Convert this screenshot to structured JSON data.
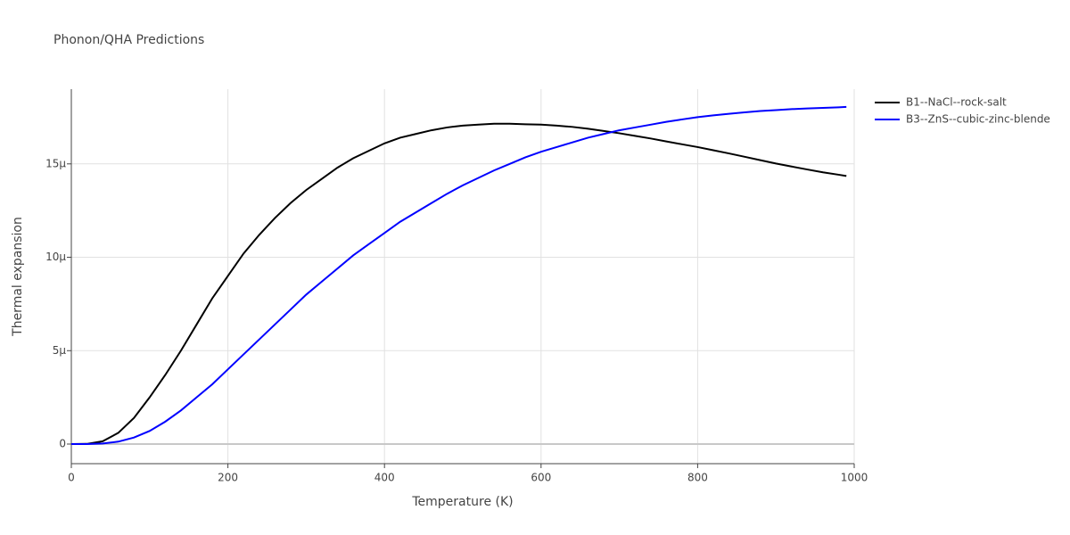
{
  "chart_data": {
    "type": "line",
    "title": "Phonon/QHA Predictions",
    "x_label": "Temperature (K)",
    "y_label": "Thermal expansion",
    "x": [
      0,
      20,
      40,
      60,
      80,
      100,
      120,
      140,
      160,
      180,
      200,
      220,
      240,
      260,
      280,
      300,
      320,
      340,
      360,
      380,
      400,
      420,
      440,
      460,
      480,
      500,
      520,
      540,
      560,
      580,
      600,
      620,
      640,
      660,
      680,
      700,
      720,
      740,
      760,
      780,
      800,
      820,
      840,
      860,
      880,
      900,
      920,
      940,
      960,
      980,
      990
    ],
    "series": [
      {
        "name": "B1--NaCl--rock-salt",
        "color": "#000000",
        "values": [
          0.0,
          1e-08,
          1.5e-07,
          6e-07,
          1.4e-06,
          2.5e-06,
          3.7e-06,
          5e-06,
          6.4e-06,
          7.8e-06,
          9e-06,
          1.02e-05,
          1.12e-05,
          1.21e-05,
          1.29e-05,
          1.36e-05,
          1.42e-05,
          1.48e-05,
          1.53e-05,
          1.57e-05,
          1.61e-05,
          1.64e-05,
          1.66e-05,
          1.68e-05,
          1.695e-05,
          1.705e-05,
          1.71e-05,
          1.715e-05,
          1.715e-05,
          1.712e-05,
          1.71e-05,
          1.705e-05,
          1.698e-05,
          1.688e-05,
          1.676e-05,
          1.664e-05,
          1.65e-05,
          1.636e-05,
          1.62e-05,
          1.605e-05,
          1.59e-05,
          1.573e-05,
          1.556e-05,
          1.538e-05,
          1.52e-05,
          1.502e-05,
          1.486e-05,
          1.47e-05,
          1.455e-05,
          1.442e-05,
          1.435e-05
        ]
      },
      {
        "name": "B3--ZnS--cubic-zinc-blende",
        "color": "#0000ff",
        "values": [
          0.0,
          0.0,
          3e-08,
          1.3e-07,
          3.5e-07,
          7e-07,
          1.2e-06,
          1.8e-06,
          2.5e-06,
          3.2e-06,
          4e-06,
          4.8e-06,
          5.6e-06,
          6.4e-06,
          7.2e-06,
          8e-06,
          8.7e-06,
          9.4e-06,
          1.01e-05,
          1.07e-05,
          1.13e-05,
          1.19e-05,
          1.24e-05,
          1.29e-05,
          1.34e-05,
          1.385e-05,
          1.425e-05,
          1.465e-05,
          1.5e-05,
          1.535e-05,
          1.565e-05,
          1.59e-05,
          1.615e-05,
          1.64e-05,
          1.66e-05,
          1.68e-05,
          1.695e-05,
          1.71e-05,
          1.725e-05,
          1.738e-05,
          1.75e-05,
          1.76e-05,
          1.768e-05,
          1.776e-05,
          1.783e-05,
          1.788e-05,
          1.793e-05,
          1.797e-05,
          1.8e-05,
          1.803e-05,
          1.805e-05
        ]
      }
    ],
    "xlim": [
      0,
      1000
    ],
    "xticks": [
      0,
      200,
      400,
      600,
      800,
      1000
    ],
    "ylim": [
      -1.05e-06,
      1.9e-05
    ],
    "yticks": [
      0,
      {
        "value": 5e-06,
        "label": "5μ"
      },
      {
        "value": 1e-05,
        "label": "10μ"
      },
      {
        "value": 1.5e-05,
        "label": "15μ"
      }
    ],
    "grid": true,
    "legend": "outside-right"
  }
}
